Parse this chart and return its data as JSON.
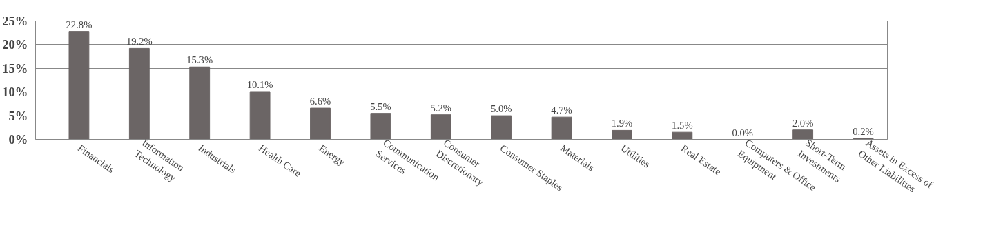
{
  "chart_data": {
    "type": "bar",
    "categories": [
      "Financials",
      "Information\nTechnology",
      "Industrials",
      "Health Care",
      "Energy",
      "Communication\nServices",
      "Consumer\nDiscretionary",
      "Consumer Staples",
      "Materials",
      "Utilities",
      "Real Estate",
      "Computers & Office\nEquipment",
      "Short-Term\nInvestments",
      "Assets in Excess of\nOther Liabilities"
    ],
    "values": [
      22.8,
      19.2,
      15.3,
      10.1,
      6.6,
      5.5,
      5.2,
      5.0,
      4.7,
      1.9,
      1.5,
      0.0,
      2.0,
      0.2
    ],
    "value_labels": [
      "22.8%",
      "19.2%",
      "15.3%",
      "10.1%",
      "6.6%",
      "5.5%",
      "5.2%",
      "5.0%",
      "4.7%",
      "1.9%",
      "1.5%",
      "0.0%",
      "2.0%",
      "0.2%"
    ],
    "color": "#6b6565",
    "ylim": [
      0,
      25
    ],
    "yticks": [
      {
        "value": 0,
        "label": "0%"
      },
      {
        "value": 5,
        "label": "5%"
      },
      {
        "value": 10,
        "label": "10%"
      },
      {
        "value": 15,
        "label": "15%"
      },
      {
        "value": 20,
        "label": "20%"
      },
      {
        "value": 25,
        "label": "25%"
      }
    ],
    "grid": "y"
  }
}
